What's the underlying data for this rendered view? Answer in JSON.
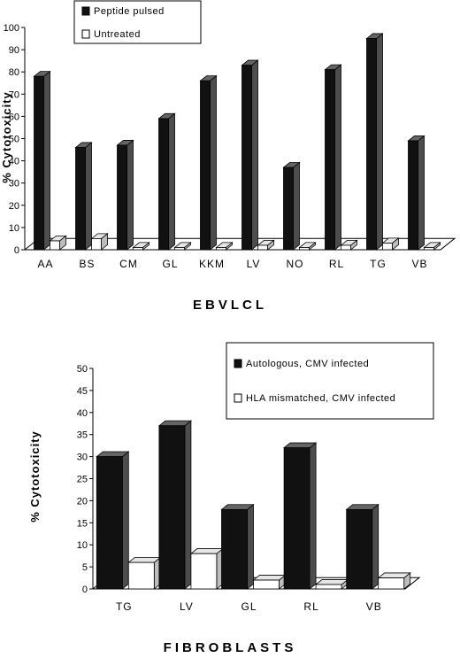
{
  "chart_data": [
    {
      "type": "bar",
      "categories": [
        "AA",
        "BS",
        "CM",
        "GL",
        "KKM",
        "LV",
        "NO",
        "RL",
        "TG",
        "VB"
      ],
      "series": [
        {
          "name": "Peptide pulsed",
          "values": [
            78,
            46,
            47,
            59,
            76,
            83,
            37,
            81,
            95,
            49
          ],
          "color": "#111111"
        },
        {
          "name": "Untreated",
          "values": [
            4,
            5,
            1,
            1,
            1,
            2,
            1,
            2,
            3,
            1
          ],
          "color": "#ffffff"
        }
      ],
      "xlabel": "EBVLCL",
      "ylabel": "% Cytotoxicity",
      "ylim": [
        0,
        100
      ],
      "yticks": [
        0,
        10,
        20,
        30,
        40,
        50,
        60,
        70,
        80,
        90,
        100
      ],
      "grid": false,
      "legend": "top-left",
      "style": "3d"
    },
    {
      "type": "bar",
      "categories": [
        "TG",
        "LV",
        "GL",
        "RL",
        "VB"
      ],
      "series": [
        {
          "name": "Autologous, CMV infected",
          "values": [
            30,
            37,
            18,
            32,
            18
          ],
          "color": "#111111"
        },
        {
          "name": "HLA mismatched, CMV infected",
          "values": [
            6,
            8,
            2,
            1,
            2.5
          ],
          "color": "#ffffff"
        }
      ],
      "xlabel": "FIBROBLASTS",
      "ylabel": "% Cytotoxicity",
      "ylim": [
        0,
        50
      ],
      "yticks": [
        0,
        5,
        10,
        15,
        20,
        25,
        30,
        35,
        40,
        45,
        50
      ],
      "grid": false,
      "legend": "top-right",
      "style": "3d"
    }
  ]
}
